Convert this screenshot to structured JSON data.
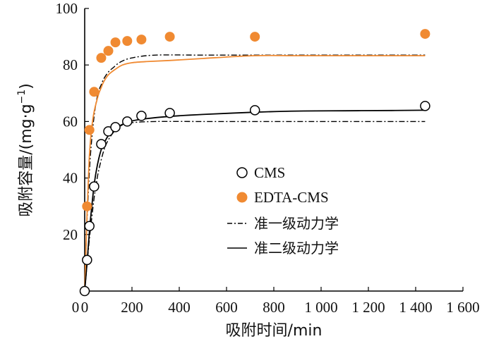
{
  "chart_data": {
    "type": "scatter",
    "xlabel": "吸附时间/min",
    "ylabel": "吸附容量/(mg·g",
    "ylabel_sup": "−1",
    "ylabel_close": ")",
    "xlim": [
      0,
      1600
    ],
    "ylim": [
      0,
      100
    ],
    "x_ticks": [
      0,
      200,
      400,
      600,
      800,
      1000,
      1200,
      1400,
      1600
    ],
    "x_tick_labels": [
      "0",
      "200",
      "400",
      "600",
      "800",
      "1 000",
      "1 200",
      "1 400",
      "1 600"
    ],
    "y_ticks": [
      0,
      20,
      40,
      60,
      80,
      100
    ],
    "y_tick_labels": [
      "0",
      "20",
      "40",
      "60",
      "80",
      "100"
    ],
    "legend_position": "center-right",
    "series": [
      {
        "name": "CMS",
        "kind": "points",
        "marker": "open-circle",
        "color": "#000000",
        "x": [
          0,
          10,
          20,
          40,
          70,
          100,
          130,
          180,
          240,
          360,
          720,
          1440
        ],
        "y": [
          0,
          11,
          23,
          37,
          52,
          56.5,
          58,
          60,
          62,
          63,
          64,
          65.5
        ]
      },
      {
        "name": "EDTA-CMS",
        "kind": "points",
        "marker": "filled-circle",
        "color": "#F08A32",
        "x": [
          10,
          20,
          40,
          70,
          100,
          130,
          180,
          240,
          360,
          720,
          1440
        ],
        "y": [
          30,
          57,
          70.5,
          82.5,
          85,
          88,
          88.5,
          89,
          90,
          90,
          91
        ]
      },
      {
        "name": "准一级动力学",
        "kind": "curve",
        "dash": "dashdot",
        "color": "#000000",
        "fits": [
          {
            "x": [
              0,
              5,
              10,
              20,
              30,
              40,
              50,
              60,
              70,
              80,
              100,
              120,
              150,
              200,
              300,
              500,
              800,
              1100,
              1440
            ],
            "y": [
              0,
              13.5,
              25,
              42.5,
              54,
              62,
              67.5,
              71,
              73,
              75,
              77.5,
              79,
              81,
              82.5,
              83.5,
              83.5,
              83.5,
              83.5,
              83.5
            ]
          },
          {
            "x": [
              0,
              10,
              20,
              30,
              40,
              50,
              60,
              80,
              100,
              130,
              160,
              200,
              300,
              500,
              800,
              1100,
              1440
            ],
            "y": [
              0,
              9.5,
              18.5,
              26,
              33,
              38.5,
              43,
              49.5,
              53.5,
              57,
              58.8,
              59.6,
              60,
              60,
              60,
              60,
              60
            ]
          }
        ]
      },
      {
        "name": "准二级动力学",
        "kind": "curve",
        "dash": "solid",
        "color": "#000000",
        "fits": [
          {
            "x": [
              0,
              5,
              10,
              15,
              20,
              30,
              40,
              50,
              60,
              70,
              80,
              100,
              130,
              160,
              200,
              260,
              360,
              500,
              720,
              900,
              1100,
              1300,
              1440
            ],
            "y": [
              0,
              14,
              27,
              38,
              48,
              58,
              63.5,
              67,
              70,
              72,
              74,
              76.5,
              78.5,
              80,
              80.8,
              81.2,
              81.6,
              82.3,
              83.3,
              83.3,
              83.3,
              83.3,
              83.3
            ],
            "color": "#F08A32"
          },
          {
            "x": [
              0,
              10,
              20,
              30,
              40,
              50,
              60,
              70,
              80,
              100,
              130,
              160,
              200,
              260,
              360,
              500,
              720,
              900,
              1100,
              1300,
              1440
            ],
            "y": [
              0,
              10,
              21,
              30,
              37.5,
              43,
              47,
              50,
              52,
              55,
              57.5,
              59,
              60.2,
              61,
              61.8,
              62.5,
              63.3,
              63.7,
              63.8,
              63.9,
              64
            ]
          }
        ]
      }
    ]
  },
  "legend": [
    {
      "label": "CMS",
      "symbol": "open-circle"
    },
    {
      "label": "EDTA-CMS",
      "symbol": "filled-circle"
    },
    {
      "label": "准一级动力学",
      "symbol": "dashdot-line"
    },
    {
      "label": "准二级动力学",
      "symbol": "solid-line"
    }
  ]
}
